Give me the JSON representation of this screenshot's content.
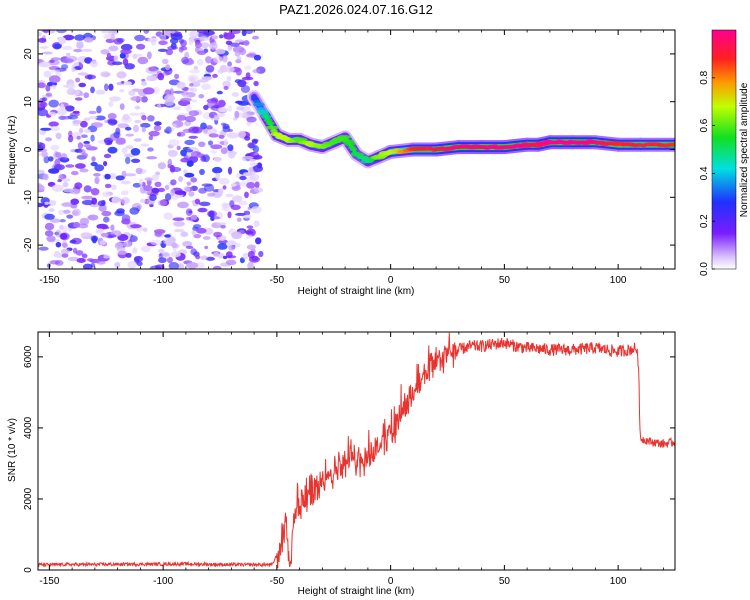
{
  "figure_title": "PAZ1.2026.024.07.16.G12",
  "chart_data": [
    {
      "type": "heatmap",
      "name": "spectrogram",
      "xlabel": "Height of straight line (km)",
      "ylabel": "Frequency (Hz)",
      "xlim": [
        -155,
        125
      ],
      "ylim": [
        -25,
        25
      ],
      "xticks": [
        -150,
        -100,
        -50,
        0,
        50,
        100
      ],
      "yticks": [
        -20,
        -10,
        0,
        10,
        20
      ],
      "noise_region_x": [
        -155,
        -57
      ],
      "ridge": {
        "x": [
          -60,
          -55,
          -50,
          -45,
          -40,
          -35,
          -30,
          -25,
          -20,
          -15,
          -10,
          -5,
          0,
          10,
          20,
          30,
          40,
          50,
          60,
          65,
          70,
          80,
          90,
          100,
          110,
          125
        ],
        "y": [
          11,
          7,
          3,
          2,
          2,
          1,
          0.5,
          1.5,
          2.5,
          -1,
          -2.5,
          -1.5,
          -0.5,
          0,
          0,
          0.5,
          0.5,
          0.5,
          1,
          1,
          1.5,
          1.5,
          1.5,
          1,
          1,
          1
        ],
        "amplitude": [
          0.2,
          0.4,
          0.6,
          0.6,
          0.5,
          0.6,
          0.55,
          0.5,
          0.5,
          0.45,
          0.4,
          0.55,
          0.6,
          0.8,
          0.85,
          0.9,
          0.95,
          0.95,
          0.9,
          0.85,
          0.95,
          0.95,
          0.9,
          0.8,
          0.85,
          0.8
        ]
      },
      "colorbar": {
        "label": "Normalized spectral amplitude",
        "range": [
          0,
          1
        ],
        "ticks": [
          "0.0",
          "0.2",
          "0.4",
          "0.6",
          "0.8"
        ],
        "tick_values": [
          0,
          0.2,
          0.4,
          0.6,
          0.8
        ]
      }
    },
    {
      "type": "line",
      "name": "snr",
      "xlabel": "Height of straight line (km)",
      "ylabel": "SNR (10 * v/v)",
      "xlim": [
        -155,
        125
      ],
      "ylim": [
        0,
        6700
      ],
      "xticks": [
        -150,
        -100,
        -50,
        0,
        50,
        100
      ],
      "yticks": [
        0,
        2000,
        4000,
        6000
      ],
      "color": "#e8332e",
      "series": [
        {
          "name": "SNR",
          "x": [
            -155,
            -120,
            -90,
            -70,
            -52,
            -48,
            -46,
            -45,
            -44,
            -43,
            -42,
            -40,
            -35,
            -30,
            -25,
            -20,
            -15,
            -10,
            -5,
            0,
            5,
            10,
            15,
            20,
            25,
            30,
            35,
            40,
            45,
            50,
            55,
            60,
            70,
            80,
            90,
            100,
            105,
            108,
            109,
            109.5,
            110,
            115,
            120,
            125
          ],
          "y": [
            150,
            160,
            170,
            150,
            150,
            700,
            1400,
            600,
            200,
            1200,
            1500,
            1800,
            2200,
            2500,
            2800,
            3000,
            3100,
            3200,
            3500,
            3900,
            4400,
            5000,
            5500,
            5800,
            6100,
            6200,
            6300,
            6300,
            6350,
            6400,
            6300,
            6250,
            6200,
            6200,
            6250,
            6150,
            6200,
            6250,
            5800,
            4000,
            3700,
            3600,
            3550,
            3600
          ]
        }
      ]
    }
  ]
}
